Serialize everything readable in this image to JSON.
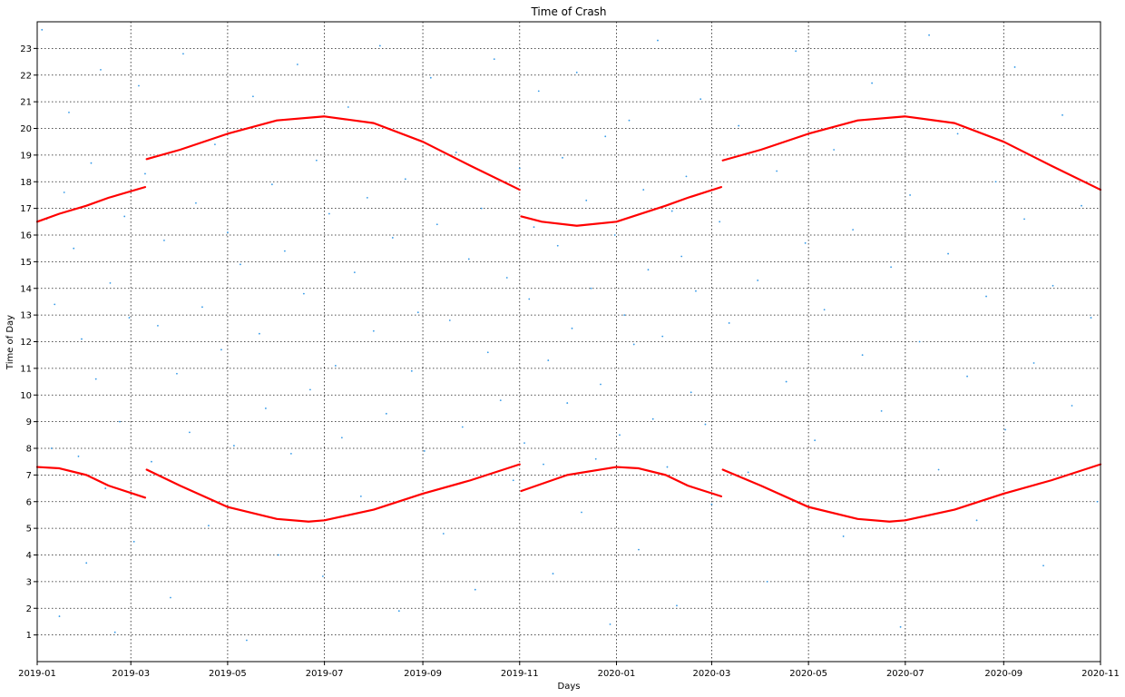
{
  "colors": {
    "scatter": "#1f8fe6",
    "curve": "#ff0000",
    "grid": "#000000",
    "axes": "#000000"
  },
  "chart_data": {
    "type": "scatter",
    "title": "Time of Crash",
    "xlabel": "Days",
    "ylabel": "Time of Day",
    "grid": true,
    "legend": "none",
    "x_range": [
      "2019-01-01",
      "2020-11-01"
    ],
    "y_range": [
      0,
      24
    ],
    "x_ticks": [
      "2019-01",
      "2019-03",
      "2019-05",
      "2019-07",
      "2019-09",
      "2019-11",
      "2020-01",
      "2020-03",
      "2020-05",
      "2020-07",
      "2020-09",
      "2020-11"
    ],
    "y_ticks": [
      1,
      2,
      3,
      4,
      5,
      6,
      7,
      8,
      9,
      10,
      11,
      12,
      13,
      14,
      15,
      16,
      17,
      18,
      19,
      20,
      21,
      22,
      23
    ],
    "series": [
      {
        "role": "scatter",
        "color": "#1f8fe6",
        "points": [
          [
            "2019-01-04",
            23.7
          ],
          [
            "2019-01-07",
            16.6
          ],
          [
            "2019-01-10",
            8.0
          ],
          [
            "2019-01-12",
            13.4
          ],
          [
            "2019-01-15",
            1.7
          ],
          [
            "2019-01-18",
            17.6
          ],
          [
            "2019-01-21",
            20.6
          ],
          [
            "2019-01-24",
            15.5
          ],
          [
            "2019-01-27",
            7.7
          ],
          [
            "2019-01-29",
            12.1
          ],
          [
            "2019-02-01",
            3.7
          ],
          [
            "2019-02-04",
            18.7
          ],
          [
            "2019-02-07",
            10.6
          ],
          [
            "2019-02-10",
            22.2
          ],
          [
            "2019-02-13",
            6.5
          ],
          [
            "2019-02-16",
            14.2
          ],
          [
            "2019-02-19",
            1.1
          ],
          [
            "2019-02-22",
            9.0
          ],
          [
            "2019-02-25",
            16.7
          ],
          [
            "2019-02-28",
            12.9
          ],
          [
            "2019-03-03",
            4.5
          ],
          [
            "2019-03-06",
            21.6
          ],
          [
            "2019-03-10",
            18.3
          ],
          [
            "2019-03-14",
            7.5
          ],
          [
            "2019-03-18",
            12.6
          ],
          [
            "2019-03-22",
            15.8
          ],
          [
            "2019-03-26",
            2.4
          ],
          [
            "2019-03-30",
            10.8
          ],
          [
            "2019-04-03",
            22.8
          ],
          [
            "2019-04-07",
            8.6
          ],
          [
            "2019-04-11",
            17.2
          ],
          [
            "2019-04-15",
            13.3
          ],
          [
            "2019-04-19",
            5.1
          ],
          [
            "2019-04-23",
            19.4
          ],
          [
            "2019-04-27",
            11.7
          ],
          [
            "2019-05-01",
            16.1
          ],
          [
            "2019-05-05",
            8.1
          ],
          [
            "2019-05-09",
            14.9
          ],
          [
            "2019-05-13",
            0.8
          ],
          [
            "2019-05-17",
            21.2
          ],
          [
            "2019-05-21",
            12.3
          ],
          [
            "2019-05-25",
            9.5
          ],
          [
            "2019-05-29",
            17.9
          ],
          [
            "2019-06-02",
            4.0
          ],
          [
            "2019-06-06",
            15.4
          ],
          [
            "2019-06-10",
            7.8
          ],
          [
            "2019-06-14",
            22.4
          ],
          [
            "2019-06-18",
            13.8
          ],
          [
            "2019-06-22",
            10.2
          ],
          [
            "2019-06-26",
            18.8
          ],
          [
            "2019-06-30",
            3.2
          ],
          [
            "2019-07-04",
            16.8
          ],
          [
            "2019-07-08",
            11.1
          ],
          [
            "2019-07-12",
            8.4
          ],
          [
            "2019-07-16",
            20.8
          ],
          [
            "2019-07-20",
            14.6
          ],
          [
            "2019-07-24",
            6.2
          ],
          [
            "2019-07-28",
            17.4
          ],
          [
            "2019-08-01",
            12.4
          ],
          [
            "2019-08-05",
            23.1
          ],
          [
            "2019-08-09",
            9.3
          ],
          [
            "2019-08-13",
            15.9
          ],
          [
            "2019-08-17",
            1.9
          ],
          [
            "2019-08-21",
            18.1
          ],
          [
            "2019-08-25",
            10.9
          ],
          [
            "2019-08-29",
            13.1
          ],
          [
            "2019-09-02",
            7.9
          ],
          [
            "2019-09-06",
            21.9
          ],
          [
            "2019-09-10",
            16.4
          ],
          [
            "2019-09-14",
            4.8
          ],
          [
            "2019-09-18",
            12.8
          ],
          [
            "2019-09-22",
            19.1
          ],
          [
            "2019-09-26",
            8.8
          ],
          [
            "2019-09-30",
            15.1
          ],
          [
            "2019-10-04",
            2.7
          ],
          [
            "2019-10-08",
            17.0
          ],
          [
            "2019-10-12",
            11.6
          ],
          [
            "2019-10-16",
            22.6
          ],
          [
            "2019-10-20",
            9.8
          ],
          [
            "2019-10-24",
            14.4
          ],
          [
            "2019-10-28",
            6.8
          ],
          [
            "2019-11-01",
            18.5
          ],
          [
            "2019-11-04",
            8.2
          ],
          [
            "2019-11-07",
            13.6
          ],
          [
            "2019-11-10",
            16.3
          ],
          [
            "2019-11-13",
            21.4
          ],
          [
            "2019-11-16",
            7.4
          ],
          [
            "2019-11-19",
            11.3
          ],
          [
            "2019-11-22",
            3.3
          ],
          [
            "2019-11-25",
            15.6
          ],
          [
            "2019-11-28",
            18.9
          ],
          [
            "2019-12-01",
            9.7
          ],
          [
            "2019-12-04",
            12.5
          ],
          [
            "2019-12-07",
            22.1
          ],
          [
            "2019-12-10",
            5.6
          ],
          [
            "2019-12-13",
            17.3
          ],
          [
            "2019-12-16",
            14.0
          ],
          [
            "2019-12-19",
            7.6
          ],
          [
            "2019-12-22",
            10.4
          ],
          [
            "2019-12-25",
            19.7
          ],
          [
            "2019-12-28",
            1.4
          ],
          [
            "2019-12-31",
            16.0
          ],
          [
            "2020-01-03",
            8.5
          ],
          [
            "2020-01-06",
            13.0
          ],
          [
            "2020-01-09",
            20.3
          ],
          [
            "2020-01-12",
            11.9
          ],
          [
            "2020-01-15",
            4.2
          ],
          [
            "2020-01-18",
            17.7
          ],
          [
            "2020-01-21",
            14.7
          ],
          [
            "2020-01-24",
            9.1
          ],
          [
            "2020-01-27",
            23.3
          ],
          [
            "2020-01-30",
            12.2
          ],
          [
            "2020-02-02",
            7.3
          ],
          [
            "2020-02-05",
            16.9
          ],
          [
            "2020-02-08",
            2.1
          ],
          [
            "2020-02-11",
            15.2
          ],
          [
            "2020-02-14",
            18.2
          ],
          [
            "2020-02-17",
            10.1
          ],
          [
            "2020-02-20",
            13.9
          ],
          [
            "2020-02-23",
            21.1
          ],
          [
            "2020-02-26",
            8.9
          ],
          [
            "2020-03-01",
            5.9
          ],
          [
            "2020-03-06",
            16.5
          ],
          [
            "2020-03-12",
            12.7
          ],
          [
            "2020-03-18",
            20.1
          ],
          [
            "2020-03-24",
            7.1
          ],
          [
            "2020-03-30",
            14.3
          ],
          [
            "2020-04-05",
            3.0
          ],
          [
            "2020-04-11",
            18.4
          ],
          [
            "2020-04-17",
            10.5
          ],
          [
            "2020-04-23",
            22.9
          ],
          [
            "2020-04-29",
            15.7
          ],
          [
            "2020-05-05",
            8.3
          ],
          [
            "2020-05-11",
            13.2
          ],
          [
            "2020-05-17",
            19.2
          ],
          [
            "2020-05-23",
            4.7
          ],
          [
            "2020-05-29",
            16.2
          ],
          [
            "2020-06-04",
            11.5
          ],
          [
            "2020-06-10",
            21.7
          ],
          [
            "2020-06-16",
            9.4
          ],
          [
            "2020-06-22",
            14.8
          ],
          [
            "2020-06-28",
            1.3
          ],
          [
            "2020-07-04",
            17.5
          ],
          [
            "2020-07-10",
            12.0
          ],
          [
            "2020-07-16",
            23.5
          ],
          [
            "2020-07-22",
            7.2
          ],
          [
            "2020-07-28",
            15.3
          ],
          [
            "2020-08-03",
            19.8
          ],
          [
            "2020-08-09",
            10.7
          ],
          [
            "2020-08-15",
            5.3
          ],
          [
            "2020-08-21",
            13.7
          ],
          [
            "2020-08-27",
            18.0
          ],
          [
            "2020-09-02",
            8.7
          ],
          [
            "2020-09-08",
            22.3
          ],
          [
            "2020-09-14",
            16.6
          ],
          [
            "2020-09-20",
            11.2
          ],
          [
            "2020-09-26",
            3.6
          ],
          [
            "2020-10-02",
            14.1
          ],
          [
            "2020-10-08",
            20.5
          ],
          [
            "2020-10-14",
            9.6
          ],
          [
            "2020-10-20",
            17.1
          ],
          [
            "2020-10-26",
            12.9
          ],
          [
            "2020-10-30",
            6.0
          ]
        ]
      },
      {
        "role": "curve",
        "color": "#ff0000",
        "segments": [
          [
            [
              "2019-01-01",
              16.5
            ],
            [
              "2019-01-15",
              16.8
            ],
            [
              "2019-02-01",
              17.1
            ],
            [
              "2019-02-15",
              17.4
            ],
            [
              "2019-03-10",
              17.8
            ]
          ],
          [
            [
              "2019-03-11",
              18.85
            ],
            [
              "2019-04-01",
              19.2
            ],
            [
              "2019-05-01",
              19.8
            ],
            [
              "2019-06-01",
              20.3
            ],
            [
              "2019-07-01",
              20.45
            ],
            [
              "2019-08-01",
              20.2
            ],
            [
              "2019-09-01",
              19.5
            ],
            [
              "2019-10-01",
              18.6
            ],
            [
              "2019-11-01",
              17.7
            ]
          ],
          [
            [
              "2019-11-02",
              16.7
            ],
            [
              "2019-11-15",
              16.5
            ],
            [
              "2019-12-07",
              16.35
            ],
            [
              "2020-01-01",
              16.5
            ],
            [
              "2020-02-01",
              17.1
            ],
            [
              "2020-02-15",
              17.4
            ],
            [
              "2020-03-07",
              17.8
            ]
          ],
          [
            [
              "2020-03-08",
              18.8
            ],
            [
              "2020-04-01",
              19.2
            ],
            [
              "2020-05-01",
              19.8
            ],
            [
              "2020-06-01",
              20.3
            ],
            [
              "2020-07-01",
              20.45
            ],
            [
              "2020-08-01",
              20.2
            ],
            [
              "2020-09-01",
              19.5
            ],
            [
              "2020-10-01",
              18.6
            ],
            [
              "2020-11-01",
              17.7
            ]
          ],
          [
            [
              "2019-01-01",
              7.3
            ],
            [
              "2019-01-15",
              7.25
            ],
            [
              "2019-02-01",
              7.0
            ],
            [
              "2019-02-15",
              6.6
            ],
            [
              "2019-03-10",
              6.15
            ]
          ],
          [
            [
              "2019-03-11",
              7.2
            ],
            [
              "2019-04-01",
              6.6
            ],
            [
              "2019-05-01",
              5.8
            ],
            [
              "2019-06-01",
              5.35
            ],
            [
              "2019-06-21",
              5.25
            ],
            [
              "2019-07-01",
              5.3
            ],
            [
              "2019-08-01",
              5.7
            ],
            [
              "2019-09-01",
              6.3
            ],
            [
              "2019-10-01",
              6.8
            ],
            [
              "2019-11-01",
              7.4
            ]
          ],
          [
            [
              "2019-11-02",
              6.4
            ],
            [
              "2019-12-01",
              7.0
            ],
            [
              "2020-01-01",
              7.3
            ],
            [
              "2020-01-15",
              7.25
            ],
            [
              "2020-02-01",
              7.0
            ],
            [
              "2020-02-15",
              6.6
            ],
            [
              "2020-03-07",
              6.2
            ]
          ],
          [
            [
              "2020-03-08",
              7.2
            ],
            [
              "2020-04-01",
              6.6
            ],
            [
              "2020-05-01",
              5.8
            ],
            [
              "2020-06-01",
              5.35
            ],
            [
              "2020-06-21",
              5.25
            ],
            [
              "2020-07-01",
              5.3
            ],
            [
              "2020-08-01",
              5.7
            ],
            [
              "2020-09-01",
              6.3
            ],
            [
              "2020-10-01",
              6.8
            ],
            [
              "2020-11-01",
              7.4
            ]
          ]
        ]
      }
    ]
  }
}
